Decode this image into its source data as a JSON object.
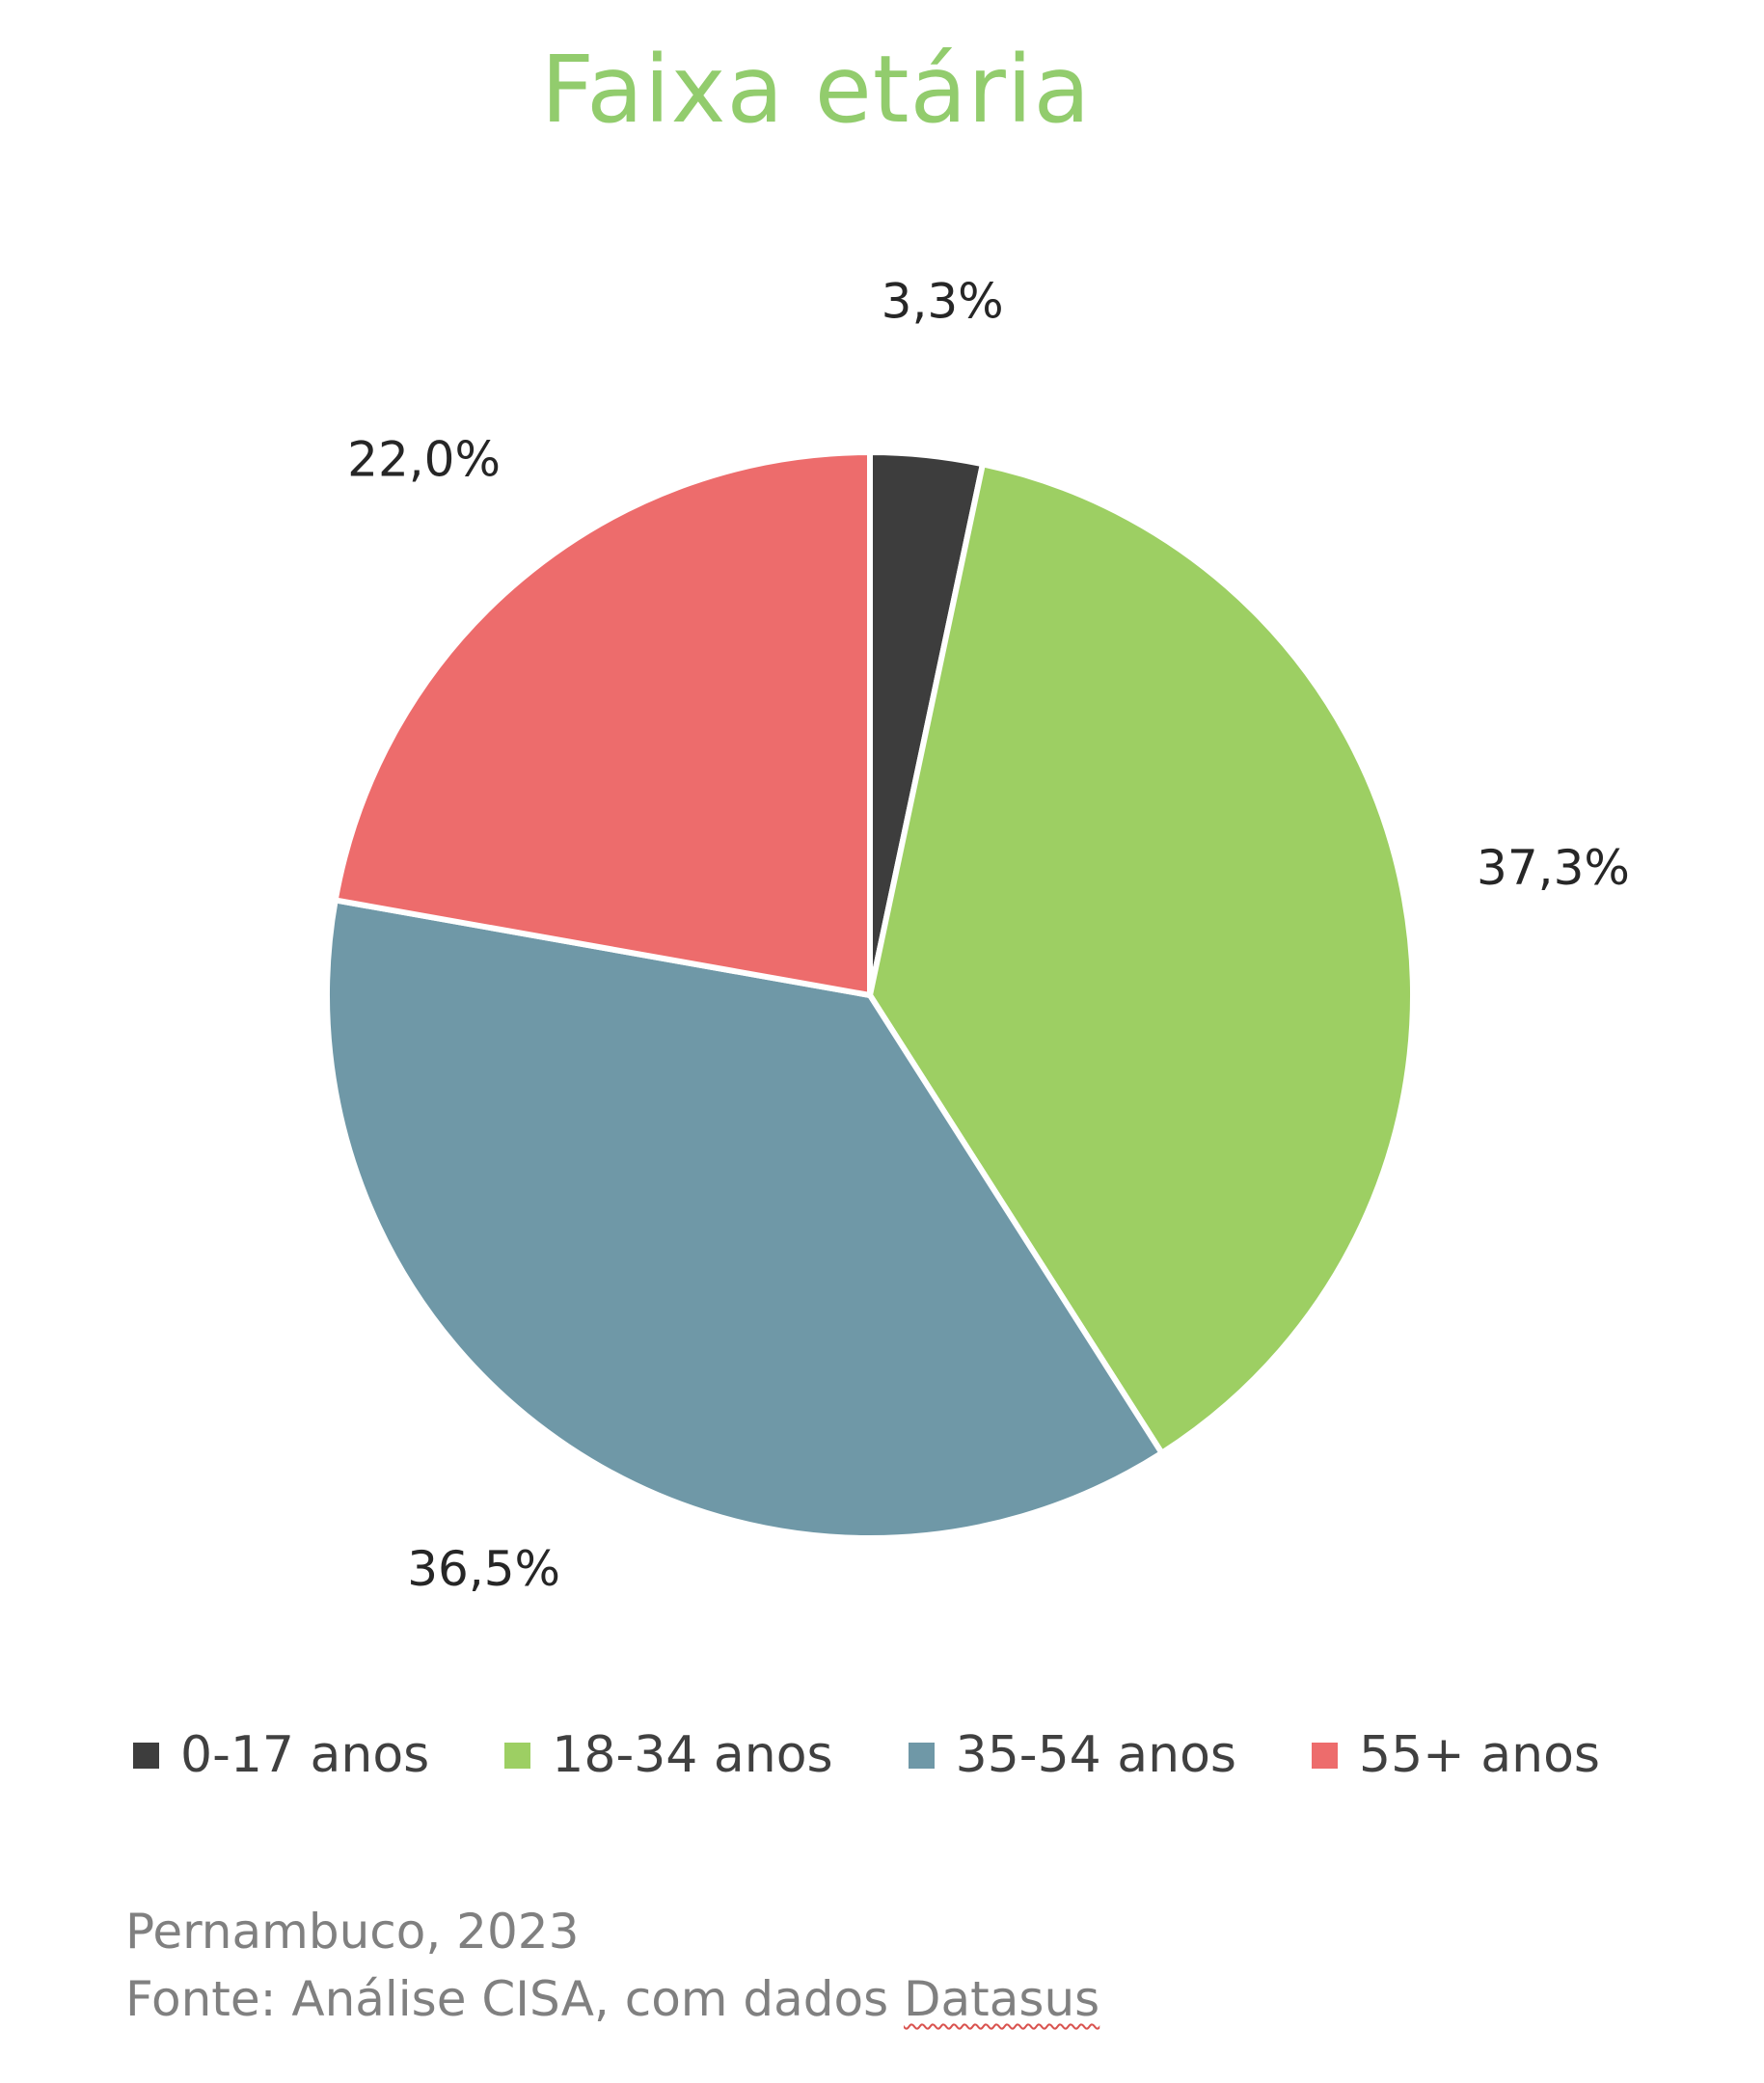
{
  "chart_data": {
    "type": "pie",
    "title": "Faixa etária",
    "categories": [
      "0-17 anos",
      "18-34 anos",
      "35-54 anos",
      "55+ anos"
    ],
    "values": [
      3.3,
      37.3,
      36.5,
      22.0
    ],
    "data_labels": [
      "3,3%",
      "37,3%",
      "36,5%",
      "22,0%"
    ],
    "colors": [
      "#3d3d3d",
      "#9dcf63",
      "#6f98a7",
      "#ed6c6c"
    ],
    "start_angle": "12 o'clock",
    "direction": "clockwise",
    "legend": "bottom"
  },
  "footer": {
    "line1": "Pernambuco, 2023",
    "line2_prefix": "Fonte: Análise CISA, com dados ",
    "line2_source": "Datasus"
  }
}
